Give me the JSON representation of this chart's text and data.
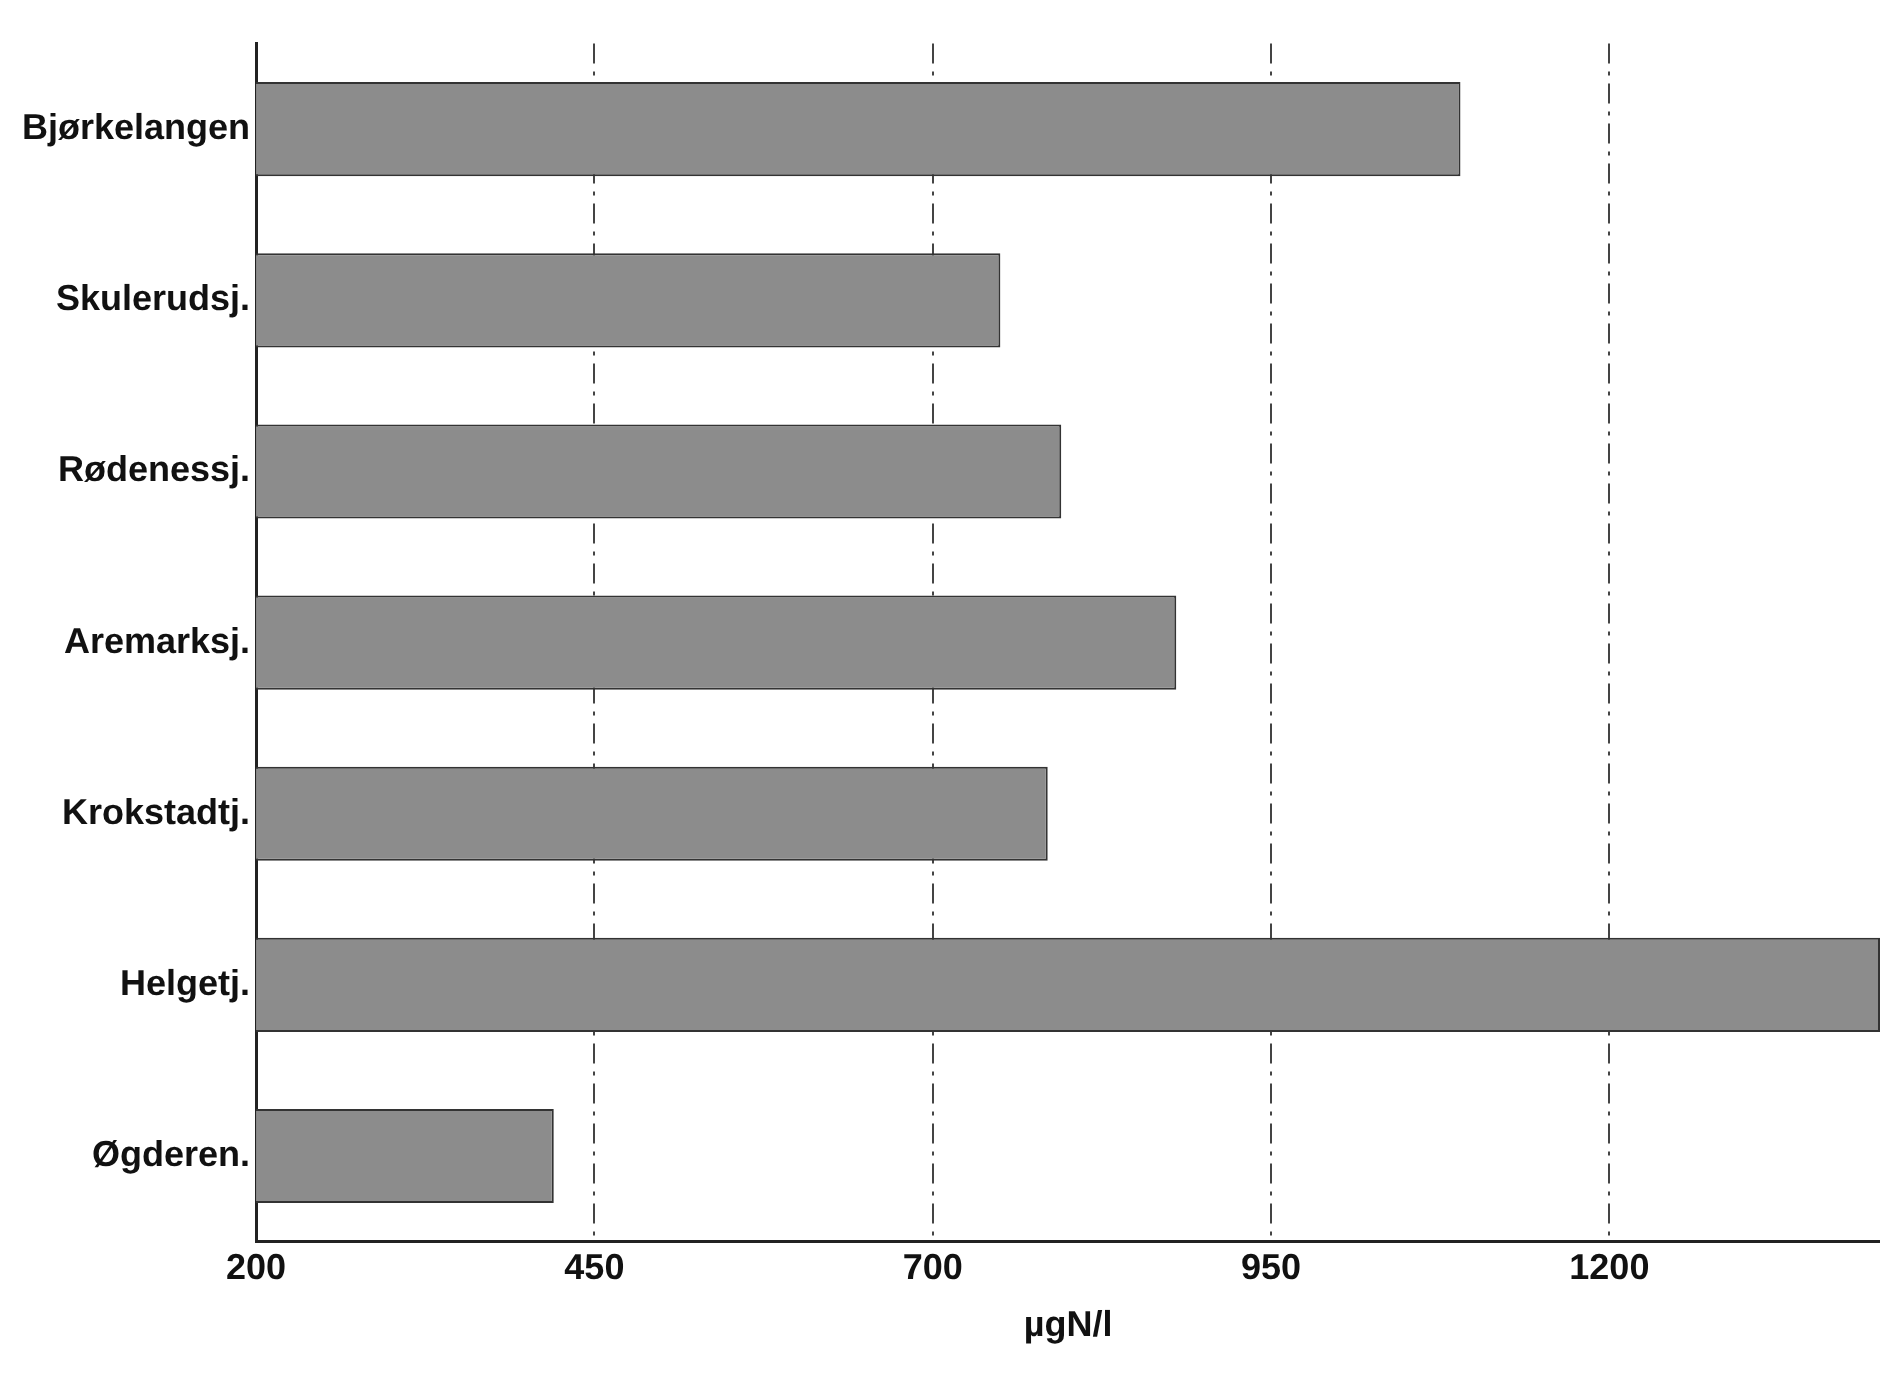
{
  "chart_data": {
    "type": "bar",
    "orientation": "horizontal",
    "xlabel": "µgN/l",
    "categories": [
      "Bjørkelangen",
      "Skulerudsj.",
      "Rødenessj.",
      "Aremarksj.",
      "Krokstadtj.",
      "Helgetj.",
      "Øgderen."
    ],
    "values": [
      1090,
      750,
      795,
      880,
      785,
      1400,
      420
    ],
    "color": "#8c8c8c",
    "xlim": [
      200,
      1400
    ],
    "xticks": [
      200,
      450,
      700,
      950,
      1200
    ],
    "grid": "x",
    "legend": false
  }
}
